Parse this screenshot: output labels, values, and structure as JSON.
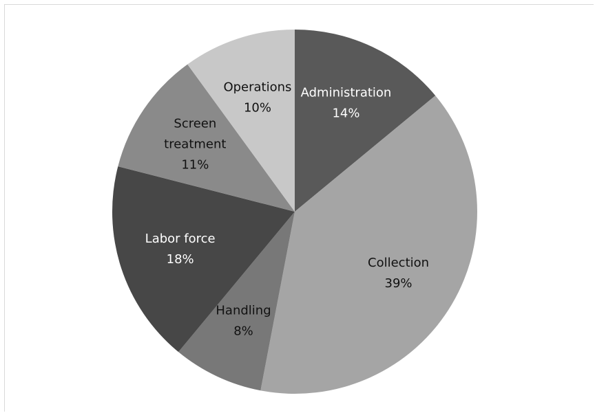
{
  "chart_data": {
    "type": "pie",
    "title": "",
    "slices": [
      {
        "category": "Administration",
        "value": 14,
        "value_label": "14%",
        "label_lines": [
          "Administration",
          "14%"
        ],
        "color": "#595959",
        "label_color": "#ffffff"
      },
      {
        "category": "Collection",
        "value": 39,
        "value_label": "39%",
        "label_lines": [
          "Collection",
          "39%"
        ],
        "color": "#a5a5a5",
        "label_color": "#111111"
      },
      {
        "category": "Handling",
        "value": 8,
        "value_label": "8%",
        "label_lines": [
          "Handling",
          "8%"
        ],
        "color": "#787878",
        "label_color": "#111111"
      },
      {
        "category": "Labor force",
        "value": 18,
        "value_label": "18%",
        "label_lines": [
          "Labor force",
          "18%"
        ],
        "color": "#474747",
        "label_color": "#ffffff"
      },
      {
        "category": "Screen treatment",
        "value": 11,
        "value_label": "11%",
        "label_lines": [
          "Screen",
          "treatment",
          "11%"
        ],
        "color": "#8a8a8a",
        "label_color": "#111111"
      },
      {
        "category": "Operations",
        "value": 10,
        "value_label": "10%",
        "label_lines": [
          "Operations",
          "10%"
        ],
        "color": "#c8c8c8",
        "label_color": "#111111"
      }
    ],
    "start_angle_deg": 0,
    "direction": "clockwise",
    "legend": "none",
    "data_labels": "inside"
  }
}
